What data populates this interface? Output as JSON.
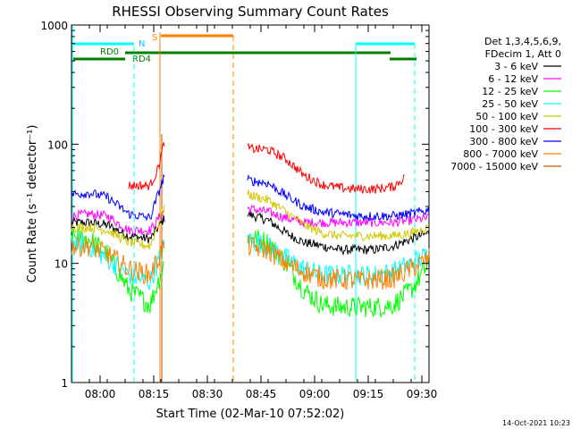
{
  "chart_data": {
    "type": "line",
    "title": "RHESSI Observing Summary Count Rates",
    "xlabel": "Start Time (02-Mar-10 07:52:02)",
    "ylabel": "Count Rate (s⁻¹ detector⁻¹)",
    "y_scale": "log",
    "ylim": [
      1,
      1000
    ],
    "xlim_minutes": [
      0,
      100
    ],
    "x_ticks": [
      "08:00",
      "08:15",
      "08:30",
      "08:45",
      "09:00",
      "09:15",
      "09:30"
    ],
    "y_ticks": [
      "1",
      "10",
      "100",
      "1000"
    ],
    "timestamp": "14-Oct-2021 10:23",
    "legend_header": [
      "Det 1,3,4,5,6,9,",
      "FDecim 1, Att 0"
    ],
    "gaps_minutes": [
      [
        26,
        49
      ]
    ],
    "series": [
      {
        "name": "3 - 6 keV",
        "color": "#000000",
        "points": [
          [
            0,
            22
          ],
          [
            5,
            22
          ],
          [
            10,
            21
          ],
          [
            16,
            17
          ],
          [
            22,
            16
          ],
          [
            26,
            24
          ],
          [
            49,
            26
          ],
          [
            55,
            23
          ],
          [
            60,
            18
          ],
          [
            65,
            15
          ],
          [
            70,
            14
          ],
          [
            75,
            13
          ],
          [
            80,
            13
          ],
          [
            85,
            13
          ],
          [
            90,
            14
          ],
          [
            95,
            16
          ],
          [
            100,
            18
          ]
        ]
      },
      {
        "name": "6 - 12 keV",
        "color": "#ff00ff",
        "points": [
          [
            0,
            25
          ],
          [
            5,
            26
          ],
          [
            10,
            25
          ],
          [
            16,
            19
          ],
          [
            22,
            19
          ],
          [
            26,
            28
          ],
          [
            49,
            29
          ],
          [
            55,
            27
          ],
          [
            60,
            24
          ],
          [
            65,
            22
          ],
          [
            70,
            22
          ],
          [
            75,
            22
          ],
          [
            80,
            22
          ],
          [
            85,
            22
          ],
          [
            90,
            22
          ],
          [
            95,
            23
          ],
          [
            100,
            24
          ]
        ]
      },
      {
        "name": "12 - 25 keV",
        "color": "#00ff00",
        "points": [
          [
            0,
            17
          ],
          [
            5,
            16
          ],
          [
            10,
            12
          ],
          [
            16,
            6
          ],
          [
            22,
            4.5
          ],
          [
            26,
            10
          ],
          [
            49,
            17
          ],
          [
            55,
            15
          ],
          [
            60,
            10
          ],
          [
            65,
            6
          ],
          [
            70,
            4.5
          ],
          [
            75,
            4.3
          ],
          [
            80,
            4.3
          ],
          [
            85,
            4.3
          ],
          [
            90,
            4.5
          ],
          [
            95,
            6
          ],
          [
            100,
            10
          ]
        ]
      },
      {
        "name": "25 - 50 keV",
        "color": "#00ffff",
        "points": [
          [
            0,
            15
          ],
          [
            5,
            14
          ],
          [
            10,
            11
          ],
          [
            16,
            8
          ],
          [
            22,
            7
          ],
          [
            26,
            14
          ],
          [
            49,
            16
          ],
          [
            55,
            14
          ],
          [
            60,
            11
          ],
          [
            65,
            9
          ],
          [
            70,
            8
          ],
          [
            75,
            8
          ],
          [
            80,
            8
          ],
          [
            85,
            8
          ],
          [
            90,
            8.5
          ],
          [
            95,
            10
          ],
          [
            100,
            12
          ]
        ]
      },
      {
        "name": "50 - 100 keV",
        "color": "#d2c800",
        "points": [
          [
            0,
            20
          ],
          [
            5,
            20
          ],
          [
            10,
            19
          ],
          [
            16,
            15
          ],
          [
            22,
            14
          ],
          [
            26,
            30
          ],
          [
            49,
            38
          ],
          [
            55,
            34
          ],
          [
            60,
            27
          ],
          [
            65,
            21
          ],
          [
            70,
            18
          ],
          [
            75,
            17
          ],
          [
            80,
            17
          ],
          [
            85,
            17
          ],
          [
            90,
            17
          ],
          [
            95,
            18
          ],
          [
            100,
            20
          ]
        ]
      },
      {
        "name": "100 - 300 keV",
        "color": "#ff0000",
        "points": [
          [
            16,
            45
          ],
          [
            22,
            45
          ],
          [
            24,
            60
          ],
          [
            26,
            105
          ],
          [
            49,
            92
          ],
          [
            55,
            90
          ],
          [
            60,
            75
          ],
          [
            65,
            55
          ],
          [
            70,
            46
          ],
          [
            75,
            43
          ],
          [
            80,
            42
          ],
          [
            85,
            42
          ],
          [
            90,
            44
          ],
          [
            93,
            52
          ]
        ]
      },
      {
        "name": "300 - 800 keV",
        "color": "#0000ff",
        "points": [
          [
            0,
            38
          ],
          [
            5,
            39
          ],
          [
            10,
            36
          ],
          [
            16,
            26
          ],
          [
            22,
            24
          ],
          [
            26,
            55
          ],
          [
            49,
            50
          ],
          [
            55,
            47
          ],
          [
            60,
            37
          ],
          [
            65,
            30
          ],
          [
            70,
            27
          ],
          [
            75,
            26
          ],
          [
            80,
            25
          ],
          [
            85,
            25
          ],
          [
            90,
            25
          ],
          [
            95,
            26
          ],
          [
            100,
            28
          ]
        ]
      },
      {
        "name": "800 - 7000 keV",
        "color": "#ff8000",
        "points": [
          [
            0,
            14
          ],
          [
            5,
            14
          ],
          [
            10,
            12
          ],
          [
            16,
            9
          ],
          [
            22,
            8
          ],
          [
            26,
            14
          ],
          [
            49,
            14
          ],
          [
            55,
            13
          ],
          [
            60,
            10
          ],
          [
            65,
            8.5
          ],
          [
            70,
            7.5
          ],
          [
            75,
            7.3
          ],
          [
            80,
            7.2
          ],
          [
            85,
            7.3
          ],
          [
            90,
            7.5
          ],
          [
            95,
            9
          ],
          [
            100,
            11
          ]
        ]
      },
      {
        "name": "7000 - 15000 keV",
        "color": "#b05a00",
        "points": []
      }
    ],
    "annotations": [
      {
        "label": "S",
        "color": "#ff8000"
      },
      {
        "label": "N",
        "color": "#00c8ff"
      },
      {
        "label": "RD0",
        "color": "#008000"
      },
      {
        "label": "RD4",
        "color": "#008000"
      }
    ]
  }
}
